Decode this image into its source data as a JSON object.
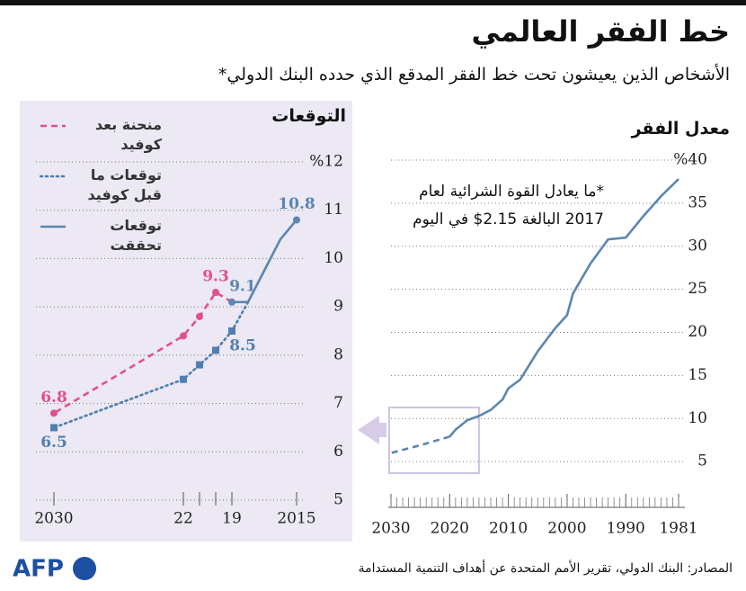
{
  "header": {
    "title": "خط الفقر العالمي",
    "subtitle": "الأشخاص الذين يعيشون تحت خط الفقر المدقع الذي حدده البنك الدولي*"
  },
  "chart_data": [
    {
      "type": "line",
      "title": "التوقعات",
      "x": [
        2015,
        2016,
        2017,
        2018,
        2019,
        2020,
        2021,
        2022,
        2030
      ],
      "xlim": [
        2031.5,
        2014
      ],
      "xticks": [
        2030,
        {
          "value": 2022,
          "label": "22"
        },
        {
          "value": 2019,
          "label": "19"
        },
        2015
      ],
      "minor_xticks": [
        2021,
        2020
      ],
      "ylim": [
        5,
        12
      ],
      "yticks": [
        5,
        6,
        7,
        8,
        9,
        10,
        11,
        {
          "value": 12,
          "label": "%12"
        }
      ],
      "grid": true,
      "series": [
        {
          "name": "منحنة بعد كوفيد",
          "color": "#e2508c",
          "dash": "dashed",
          "marker": "circle",
          "marker_at": [
            5,
            6,
            7,
            8
          ],
          "label_at": [
            5,
            8
          ],
          "label_side": "above",
          "values": [
            null,
            null,
            null,
            null,
            9.1,
            9.3,
            8.8,
            8.4,
            6.8
          ]
        },
        {
          "name": "توقعات ما قبل كوفيد",
          "color": "#4f7fae",
          "dash": "dotted",
          "marker": "square",
          "marker_at": [
            4,
            5,
            6,
            7,
            8
          ],
          "label_at": [
            4,
            8
          ],
          "label_side": "below",
          "values": [
            null,
            null,
            null,
            9.1,
            8.5,
            8.1,
            7.8,
            7.5,
            6.5
          ]
        },
        {
          "name": "توقعات تحققت",
          "color": "#5b86b0",
          "dash": "solid",
          "marker": "circle",
          "marker_at": [
            0,
            4
          ],
          "label_at": [
            0,
            4
          ],
          "label_side": "above",
          "values": [
            10.8,
            10.4,
            9.75,
            9.1,
            9.1,
            null,
            null,
            null,
            null
          ]
        }
      ]
    },
    {
      "type": "line",
      "title": "معدل الفقر",
      "x": [
        1981,
        1984,
        1987,
        1990,
        1993,
        1996,
        1999,
        2000,
        2002,
        2005,
        2008,
        2010,
        2011,
        2013,
        2015,
        2017,
        2019,
        2020,
        2025,
        2030
      ],
      "xlim": [
        2030,
        1981
      ],
      "xticks": [
        2030,
        2020,
        2010,
        2000,
        1990,
        1981
      ],
      "minor_xtick_step": 1,
      "ylim": [
        0,
        40
      ],
      "yticks": [
        5,
        10,
        15,
        20,
        25,
        30,
        35,
        {
          "value": 40,
          "label": "%40"
        }
      ],
      "grid": true,
      "annotation": [
        "*ما يعادل القوة الشرائية لعام",
        "2017 البالغة 2.15$ في اليوم"
      ],
      "series": [
        {
          "color": "#5b86b0",
          "dash": "solid",
          "values": [
            37.8,
            35.8,
            33.5,
            31.0,
            30.8,
            28.0,
            24.5,
            22.0,
            20.5,
            17.8,
            14.5,
            13.5,
            12.2,
            11.0,
            10.3,
            9.8,
            8.7,
            7.9,
            null,
            null
          ]
        },
        {
          "color": "#5b86b0",
          "dash": "dashed",
          "values": [
            null,
            null,
            null,
            null,
            null,
            null,
            null,
            null,
            null,
            null,
            null,
            null,
            null,
            null,
            null,
            null,
            null,
            7.9,
            6.9,
            6.0
          ]
        }
      ]
    }
  ],
  "sources": "المصادر: البنك الدولي، تقرير الأمم المتحدة عن أهداف التنمية المستدامة",
  "logo": "AFP"
}
